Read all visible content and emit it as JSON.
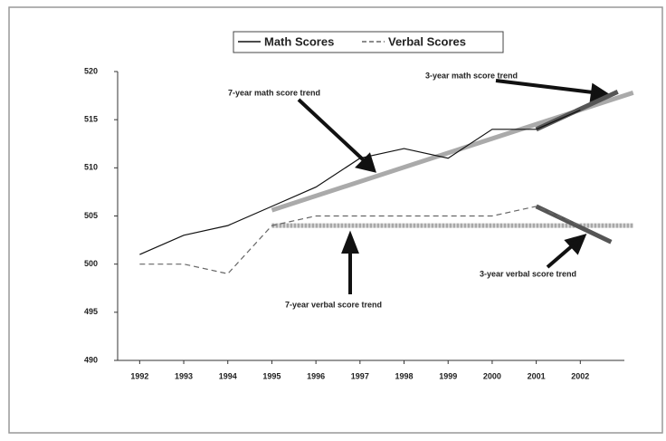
{
  "chart_data": {
    "type": "line",
    "x": [
      1992,
      1993,
      1994,
      1995,
      1996,
      1997,
      1998,
      1999,
      2000,
      2001,
      2002
    ],
    "xlim": [
      1991.5,
      2003
    ],
    "xticks": [
      1992,
      1993,
      1994,
      1995,
      1996,
      1997,
      1998,
      1999,
      2000,
      2001,
      2002
    ],
    "ylim": [
      490,
      520
    ],
    "yticks": [
      490,
      495,
      500,
      505,
      510,
      515,
      520
    ],
    "legend": "top",
    "series": [
      {
        "name": "Math Scores",
        "color": "#111111",
        "style": "solid",
        "values": [
          501,
          503,
          504,
          506,
          508,
          511,
          512,
          511,
          514,
          514,
          516
        ]
      },
      {
        "name": "Verbal Scores",
        "color": "#666666",
        "style": "dashed",
        "values": [
          500,
          500,
          499,
          504,
          505,
          505,
          505,
          505,
          505,
          506,
          504
        ]
      }
    ],
    "trends": [
      {
        "label": "7-year math score trend",
        "color": "#aaaaaa",
        "x": [
          1995,
          2003.2
        ],
        "values": [
          505.6,
          517.8
        ]
      },
      {
        "label": "3-year math score trend",
        "color": "#555555",
        "x": [
          2001,
          2002.85
        ],
        "values": [
          514,
          517.9
        ]
      },
      {
        "label": "7-year verbal score trend",
        "color": "#a8a8a8",
        "x": [
          1995,
          2003.2
        ],
        "values": [
          504,
          504
        ]
      },
      {
        "label": "3-year verbal score trend",
        "color": "#555555",
        "x": [
          2001,
          2002.7
        ],
        "values": [
          506,
          502.3
        ]
      }
    ]
  }
}
